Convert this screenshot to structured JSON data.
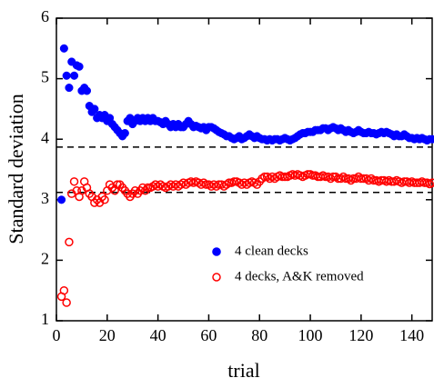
{
  "chart_data": {
    "type": "scatter",
    "xlabel": "trial",
    "ylabel": "Standard deviation",
    "xlim": [
      0,
      148
    ],
    "ylim": [
      1,
      6
    ],
    "xticks": [
      0,
      20,
      40,
      60,
      80,
      100,
      120,
      140
    ],
    "yticks": [
      1,
      2,
      3,
      4,
      5,
      6
    ],
    "hlines": [
      3.87,
      3.12
    ],
    "legend": "lower right",
    "x": [
      2,
      3,
      4,
      5,
      6,
      7,
      8,
      9,
      10,
      11,
      12,
      13,
      14,
      15,
      16,
      17,
      18,
      19,
      20,
      21,
      22,
      23,
      24,
      25,
      26,
      27,
      28,
      29,
      30,
      31,
      32,
      33,
      34,
      35,
      36,
      37,
      38,
      39,
      40,
      41,
      42,
      43,
      44,
      45,
      46,
      47,
      48,
      49,
      50,
      51,
      52,
      53,
      54,
      55,
      56,
      57,
      58,
      59,
      60,
      61,
      62,
      63,
      64,
      65,
      66,
      67,
      68,
      69,
      70,
      71,
      72,
      73,
      74,
      75,
      76,
      77,
      78,
      79,
      80,
      81,
      82,
      83,
      84,
      85,
      86,
      87,
      88,
      89,
      90,
      91,
      92,
      93,
      94,
      95,
      96,
      97,
      98,
      99,
      100,
      101,
      102,
      103,
      104,
      105,
      106,
      107,
      108,
      109,
      110,
      111,
      112,
      113,
      114,
      115,
      116,
      117,
      118,
      119,
      120,
      121,
      122,
      123,
      124,
      125,
      126,
      127,
      128,
      129,
      130,
      131,
      132,
      133,
      134,
      135,
      136,
      137,
      138,
      139,
      140,
      141,
      142,
      143,
      144,
      145,
      146,
      147,
      148
    ],
    "series": [
      {
        "name": "4 clean decks",
        "color": "#0000ff",
        "filled": true,
        "values": [
          3.0,
          5.5,
          5.05,
          4.85,
          5.28,
          5.05,
          5.22,
          5.2,
          4.8,
          4.85,
          4.8,
          4.55,
          4.45,
          4.5,
          4.35,
          4.4,
          4.35,
          4.4,
          4.3,
          4.35,
          4.25,
          4.2,
          4.15,
          4.1,
          4.05,
          4.1,
          4.3,
          4.35,
          4.25,
          4.3,
          4.35,
          4.3,
          4.35,
          4.3,
          4.35,
          4.3,
          4.35,
          4.3,
          4.3,
          4.28,
          4.25,
          4.3,
          4.25,
          4.2,
          4.25,
          4.2,
          4.25,
          4.2,
          4.2,
          4.25,
          4.3,
          4.25,
          4.2,
          4.22,
          4.2,
          4.18,
          4.2,
          4.15,
          4.2,
          4.2,
          4.18,
          4.15,
          4.12,
          4.1,
          4.08,
          4.05,
          4.05,
          4.02,
          4.0,
          4.02,
          4.05,
          4.0,
          4.02,
          4.05,
          4.08,
          4.05,
          4.02,
          4.05,
          4.02,
          4.0,
          4.0,
          3.98,
          4.0,
          3.98,
          4.0,
          4.0,
          3.98,
          4.0,
          4.02,
          4.0,
          3.98,
          4.0,
          4.02,
          4.05,
          4.08,
          4.1,
          4.1,
          4.12,
          4.12,
          4.12,
          4.15,
          4.15,
          4.15,
          4.18,
          4.18,
          4.15,
          4.18,
          4.2,
          4.18,
          4.15,
          4.18,
          4.15,
          4.12,
          4.15,
          4.12,
          4.1,
          4.12,
          4.15,
          4.12,
          4.1,
          4.1,
          4.12,
          4.1,
          4.1,
          4.08,
          4.1,
          4.12,
          4.1,
          4.12,
          4.1,
          4.08,
          4.05,
          4.08,
          4.05,
          4.05,
          4.08,
          4.05,
          4.02,
          4.02,
          4.0,
          4.02,
          4.0,
          4.02,
          4.0,
          3.98,
          4.0,
          4.0
        ]
      },
      {
        "name": "4 decks, A&K removed",
        "color": "#ff0000",
        "filled": false,
        "values": [
          1.4,
          1.5,
          1.3,
          2.3,
          3.1,
          3.3,
          3.15,
          3.05,
          3.15,
          3.3,
          3.2,
          3.1,
          3.05,
          2.95,
          3.0,
          2.95,
          3.05,
          3.0,
          3.15,
          3.25,
          3.2,
          3.15,
          3.25,
          3.25,
          3.2,
          3.15,
          3.1,
          3.05,
          3.1,
          3.15,
          3.1,
          3.15,
          3.2,
          3.15,
          3.2,
          3.2,
          3.22,
          3.25,
          3.22,
          3.25,
          3.22,
          3.2,
          3.22,
          3.25,
          3.22,
          3.25,
          3.22,
          3.25,
          3.28,
          3.25,
          3.28,
          3.3,
          3.28,
          3.3,
          3.28,
          3.25,
          3.28,
          3.25,
          3.25,
          3.22,
          3.25,
          3.22,
          3.25,
          3.25,
          3.22,
          3.25,
          3.28,
          3.28,
          3.3,
          3.3,
          3.28,
          3.25,
          3.28,
          3.25,
          3.28,
          3.3,
          3.28,
          3.25,
          3.3,
          3.35,
          3.38,
          3.38,
          3.35,
          3.38,
          3.35,
          3.38,
          3.4,
          3.38,
          3.38,
          3.38,
          3.4,
          3.42,
          3.4,
          3.42,
          3.4,
          3.38,
          3.4,
          3.42,
          3.42,
          3.4,
          3.4,
          3.38,
          3.38,
          3.4,
          3.38,
          3.38,
          3.35,
          3.38,
          3.38,
          3.35,
          3.35,
          3.38,
          3.35,
          3.35,
          3.32,
          3.35,
          3.35,
          3.38,
          3.35,
          3.35,
          3.35,
          3.32,
          3.35,
          3.32,
          3.32,
          3.3,
          3.32,
          3.32,
          3.3,
          3.32,
          3.3,
          3.3,
          3.32,
          3.3,
          3.28,
          3.3,
          3.3,
          3.28,
          3.3,
          3.28,
          3.28,
          3.28,
          3.3,
          3.28,
          3.28,
          3.26,
          3.28
        ]
      }
    ]
  }
}
